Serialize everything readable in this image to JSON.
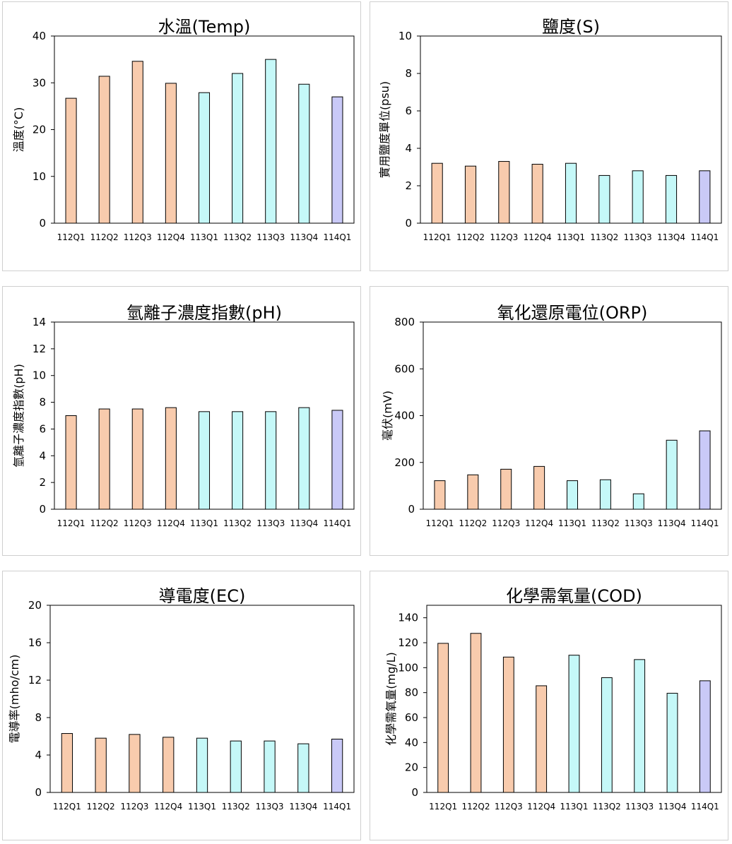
{
  "colors": {
    "q2023": "#f8cbad",
    "q2024": "#c5f8f8",
    "q2025": "#c9c9f7",
    "stroke": "#000000"
  },
  "chart_data": [
    {
      "type": "bar",
      "title": "水溫(Temp)",
      "xlabel": "",
      "ylabel": "溫度(°C)",
      "categories": [
        "112Q1",
        "112Q2",
        "112Q3",
        "112Q4",
        "113Q1",
        "113Q2",
        "113Q3",
        "113Q4",
        "114Q1"
      ],
      "values": [
        26.7,
        31.4,
        34.6,
        29.9,
        27.9,
        32.0,
        35.0,
        29.7,
        27.0
      ],
      "ylim": [
        0,
        40
      ],
      "yticks": [
        0,
        10,
        20,
        30,
        40
      ],
      "grid": false,
      "legend": "none"
    },
    {
      "type": "bar",
      "title": "鹽度(S)",
      "xlabel": "",
      "ylabel": "實用鹽度單位(psu)",
      "categories": [
        "112Q1",
        "112Q2",
        "112Q3",
        "112Q4",
        "113Q1",
        "113Q2",
        "113Q3",
        "113Q4",
        "114Q1"
      ],
      "values": [
        3.2,
        3.05,
        3.3,
        3.15,
        3.2,
        2.55,
        2.8,
        2.55,
        2.8
      ],
      "ylim": [
        0,
        10
      ],
      "yticks": [
        0,
        2,
        4,
        6,
        8,
        10
      ],
      "grid": false,
      "legend": "none"
    },
    {
      "type": "bar",
      "title": "氫離子濃度指數(pH)",
      "xlabel": "",
      "ylabel": "氫離子濃度指數(pH)",
      "categories": [
        "112Q1",
        "112Q2",
        "112Q3",
        "112Q4",
        "113Q1",
        "113Q2",
        "113Q3",
        "113Q4",
        "114Q1"
      ],
      "values": [
        7.0,
        7.5,
        7.5,
        7.6,
        7.3,
        7.3,
        7.3,
        7.6,
        7.4
      ],
      "ylim": [
        0,
        14
      ],
      "yticks": [
        0,
        2,
        4,
        6,
        8,
        10,
        12,
        14
      ],
      "grid": false,
      "legend": "none"
    },
    {
      "type": "bar",
      "title": "氧化還原電位(ORP)",
      "xlabel": "",
      "ylabel": "毫伏(mV)",
      "categories": [
        "112Q1",
        "112Q2",
        "112Q3",
        "112Q4",
        "113Q1",
        "113Q2",
        "113Q3",
        "113Q4",
        "114Q1"
      ],
      "values": [
        122,
        147,
        171,
        183,
        122,
        126,
        66,
        295,
        335
      ],
      "ylim": [
        0,
        800
      ],
      "yticks": [
        0,
        200,
        400,
        600,
        800
      ],
      "grid": false,
      "legend": "none"
    },
    {
      "type": "bar",
      "title": "導電度(EC)",
      "xlabel": "",
      "ylabel": "電導率(mho/cm)",
      "categories": [
        "112Q1",
        "112Q2",
        "112Q3",
        "112Q4",
        "113Q1",
        "113Q2",
        "113Q3",
        "113Q4",
        "114Q1"
      ],
      "values": [
        6.3,
        5.8,
        6.2,
        5.9,
        5.8,
        5.5,
        5.5,
        5.2,
        5.7
      ],
      "ylim": [
        0,
        20
      ],
      "yticks": [
        0,
        4,
        8,
        12,
        16,
        20
      ],
      "grid": false,
      "legend": "none"
    },
    {
      "type": "bar",
      "title": "化學需氧量(COD)",
      "xlabel": "",
      "ylabel": "化學需氧量(mg/L)",
      "categories": [
        "112Q1",
        "112Q2",
        "112Q3",
        "112Q4",
        "113Q1",
        "113Q2",
        "113Q3",
        "113Q4",
        "114Q1"
      ],
      "values": [
        119.5,
        127.5,
        108.5,
        85.5,
        110.0,
        92.0,
        106.5,
        79.5,
        89.5
      ],
      "ylim": [
        0,
        150
      ],
      "yticks": [
        0,
        20,
        40,
        60,
        80,
        100,
        120,
        140
      ],
      "grid": false,
      "legend": "none"
    }
  ]
}
